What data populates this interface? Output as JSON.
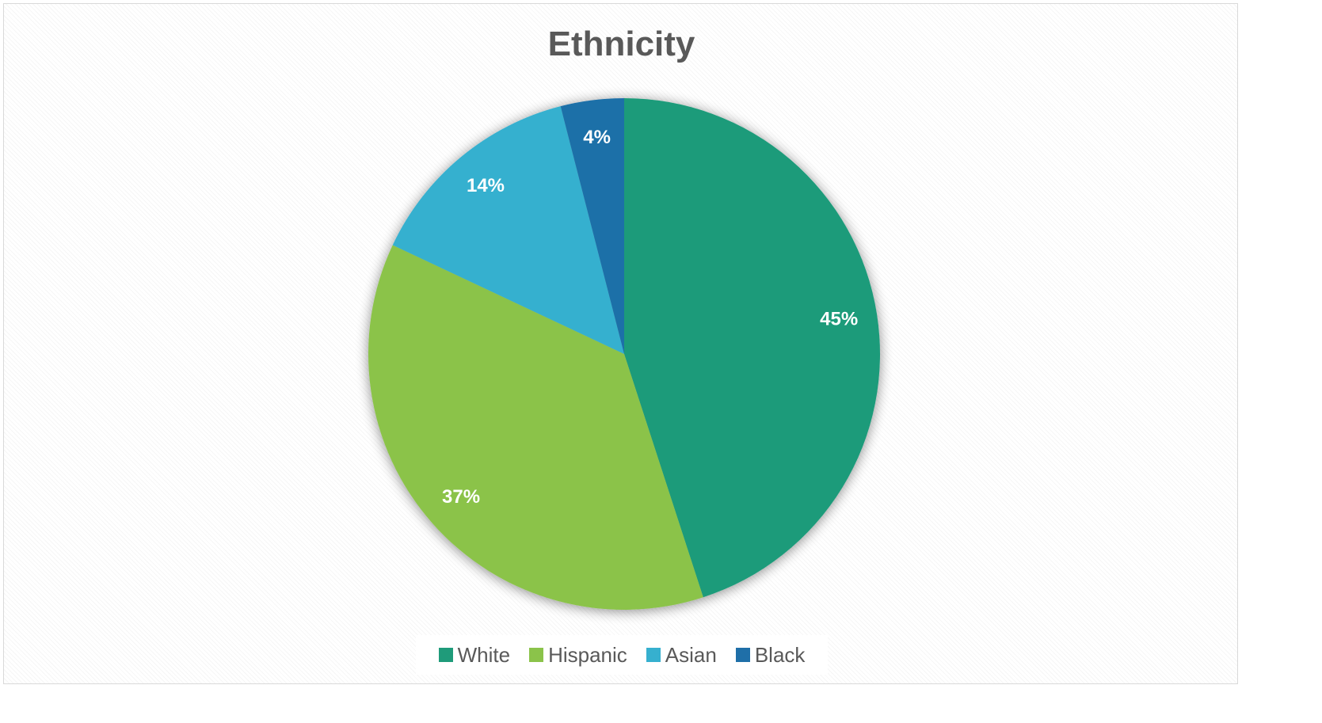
{
  "chart_data": {
    "type": "pie",
    "title": "Ethnicity",
    "categories": [
      "White",
      "Hispanic",
      "Asian",
      "Black"
    ],
    "values": [
      45,
      37,
      14,
      4
    ],
    "labels": [
      "45%",
      "37%",
      "14%",
      "4%"
    ],
    "colors": [
      "#1f9b7a",
      "#8bc34a",
      "#36b0cf",
      "#1f6fa8"
    ],
    "legend": "bottom"
  }
}
